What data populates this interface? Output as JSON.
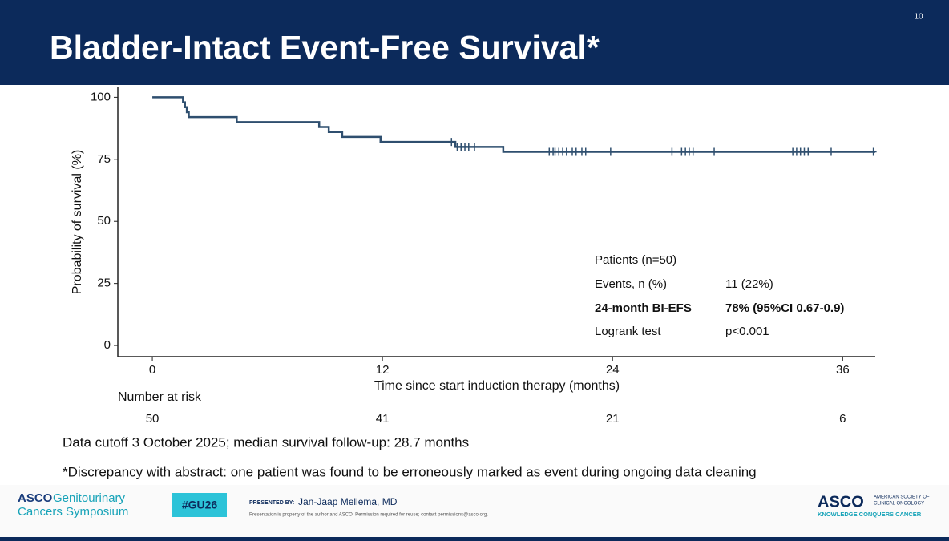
{
  "slide_number": "10",
  "header": {
    "title": "Bladder-Intact Event-Free Survival*"
  },
  "chart_data": {
    "type": "line",
    "step": "post",
    "xlabel": "Time since start induction therapy (months)",
    "ylabel": "Probability of survival (%)",
    "x": [
      0,
      1.6,
      1.7,
      1.8,
      1.9,
      4.4,
      8.7,
      9.2,
      9.9,
      11.9,
      15.8,
      18.3,
      37.7
    ],
    "values": [
      100,
      98,
      96,
      94,
      92,
      90,
      88,
      86,
      84,
      82,
      80,
      78,
      78
    ],
    "color": "#2f4f6f",
    "censored": {
      "x": [
        15.6,
        15.9,
        16.1,
        16.3,
        16.5,
        16.8,
        20.7,
        20.9,
        21.0,
        21.2,
        21.4,
        21.6,
        21.9,
        22.1,
        22.4,
        22.6,
        23.9,
        27.1,
        27.6,
        27.8,
        28.0,
        28.2,
        29.3,
        33.4,
        33.6,
        33.8,
        34.0,
        34.2,
        35.4,
        37.6
      ],
      "values": [
        82,
        80,
        80,
        80,
        80,
        80,
        78,
        78,
        78,
        78,
        78,
        78,
        78,
        78,
        78,
        78,
        78,
        78,
        78,
        78,
        78,
        78,
        78,
        78,
        78,
        78,
        78,
        78,
        78,
        78
      ]
    },
    "xlim": [
      -1.8,
      37.7
    ],
    "ylim": [
      -4.5,
      104
    ],
    "xticks": [
      0,
      12,
      24,
      36
    ],
    "yticks": [
      0,
      25,
      50,
      75,
      100
    ],
    "grid": false,
    "risk_table": {
      "title": "Number at risk",
      "x": [
        0,
        12,
        24,
        36
      ],
      "values": [
        50,
        41,
        21,
        6
      ]
    },
    "stats": {
      "rows": [
        [
          "Patients (n=50)"
        ],
        [
          "Events, n (%)",
          "11 (22%)"
        ],
        [
          "24-month BI-EFS",
          "78% (95%CI 0.67-0.9)"
        ],
        [
          "Logrank test",
          "p<0.001"
        ]
      ]
    }
  },
  "notes": [
    "Data cutoff 3 October 2025; median survival follow-up: 28.7 months",
    "*Discrepancy with abstract: one patient was found to be erroneously marked as event during ongoing data cleaning"
  ],
  "footer": {
    "symposium_brand": "ASCO",
    "symposium_name_1": "Genitourinary",
    "symposium_name_2": "Cancers Symposium",
    "hashtag": "#GU26",
    "presented_by_label": "PRESENTED BY:",
    "presenter": "Jan-Jaap Mellema, MD",
    "disclaimer": "Presentation is property of the author and ASCO. Permission required for reuse; contact permissions@asco.org.",
    "asco_logo": "ASCO",
    "asco_society_1": "AMERICAN SOCIETY OF",
    "asco_society_2": "CLINICAL ONCOLOGY",
    "tagline": "KNOWLEDGE CONQUERS CANCER"
  }
}
